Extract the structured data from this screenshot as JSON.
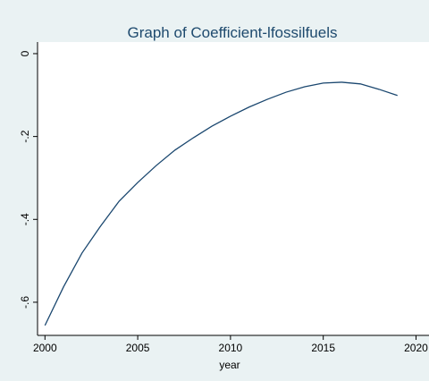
{
  "chart_data": {
    "type": "line",
    "title": "Graph of Coefficient-lfossilfuels",
    "x_label": "year",
    "x": [
      2000,
      2001,
      2002,
      2003,
      2004,
      2005,
      2006,
      2007,
      2008,
      2009,
      2010,
      2011,
      2012,
      2013,
      2014,
      2015,
      2016,
      2017,
      2018,
      2019
    ],
    "series": [
      {
        "color": "#1a476f",
        "values": [
          -0.656,
          -0.563,
          -0.481,
          -0.416,
          -0.356,
          -0.311,
          -0.27,
          -0.233,
          -0.203,
          -0.175,
          -0.151,
          -0.129,
          -0.11,
          -0.093,
          -0.08,
          -0.071,
          -0.069,
          -0.073,
          -0.086,
          -0.101
        ]
      }
    ],
    "xlim": [
      1999.6,
      2020.7
    ],
    "xticks": [
      2000,
      2005,
      2010,
      2015,
      2020
    ],
    "ylim": [
      -0.68,
      0.028
    ],
    "yticks": [
      0,
      {
        "value": -0.2,
        "label": "-.2"
      },
      {
        "value": -0.4,
        "label": "-.4"
      },
      {
        "value": -0.6,
        "label": "-.6"
      }
    ]
  }
}
